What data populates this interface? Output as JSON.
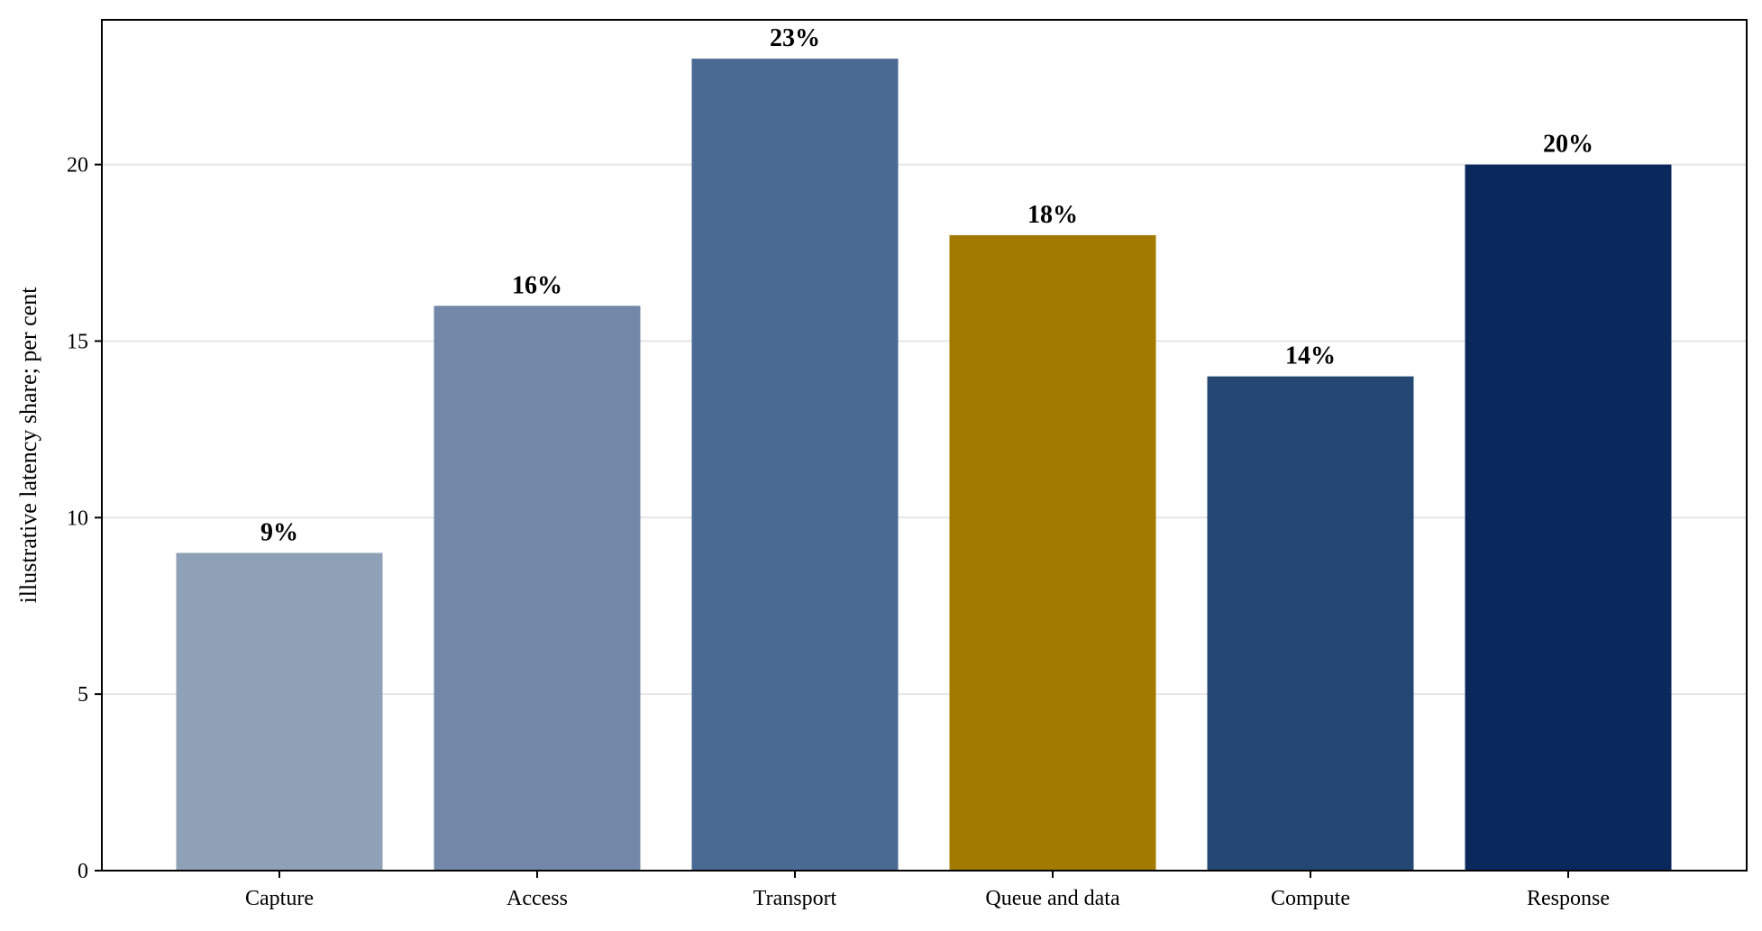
{
  "chart_data": {
    "type": "bar",
    "categories": [
      "Capture",
      "Access",
      "Transport",
      "Queue and data",
      "Compute",
      "Response"
    ],
    "values": [
      9,
      16,
      23,
      18,
      14,
      20
    ],
    "value_labels": [
      "9%",
      "16%",
      "23%",
      "18%",
      "14%",
      "20%"
    ],
    "colors": [
      "#8fa1b7",
      "#7388a8",
      "#4a6a93",
      "#a37a00",
      "#244873",
      "#0b285c"
    ],
    "ylabel": "illustrative latency share; per cent",
    "xlabel": "",
    "ylim": [
      0,
      24.1
    ],
    "yticks": [
      0,
      5,
      10,
      15,
      20
    ],
    "ytick_labels": [
      "0",
      "5",
      "10",
      "15",
      "20"
    ],
    "grid": "horizontal"
  }
}
